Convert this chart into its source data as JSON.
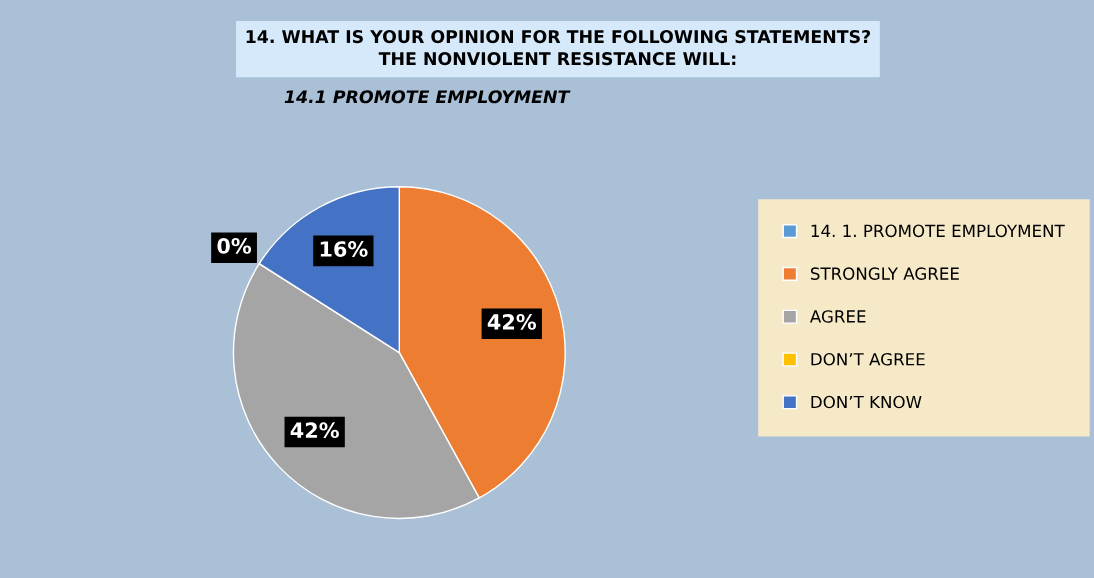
{
  "chart_data": {
    "type": "pie",
    "title": "14. WHAT IS YOUR OPINION FOR THE FOLLOWING STATEMENTS?\nTHE NONVIOLENT RESISTANCE WILL:",
    "subtitle": "14.1 PROMOTE EMPLOYMENT",
    "categories": [
      "14. 1. PROMOTE EMPLOYMENT",
      "STRONGLY AGREE",
      "AGREE",
      "DON’T AGREE",
      "DON’T KNOW"
    ],
    "values": [
      0,
      42,
      42,
      0,
      16
    ],
    "value_labels": [
      null,
      "42%",
      "42%",
      "0%",
      "16%"
    ],
    "colors": [
      "#5b9bd5",
      "#ed7d31",
      "#a5a5a5",
      "#ffc000",
      "#4472c4"
    ],
    "legend": "right"
  }
}
